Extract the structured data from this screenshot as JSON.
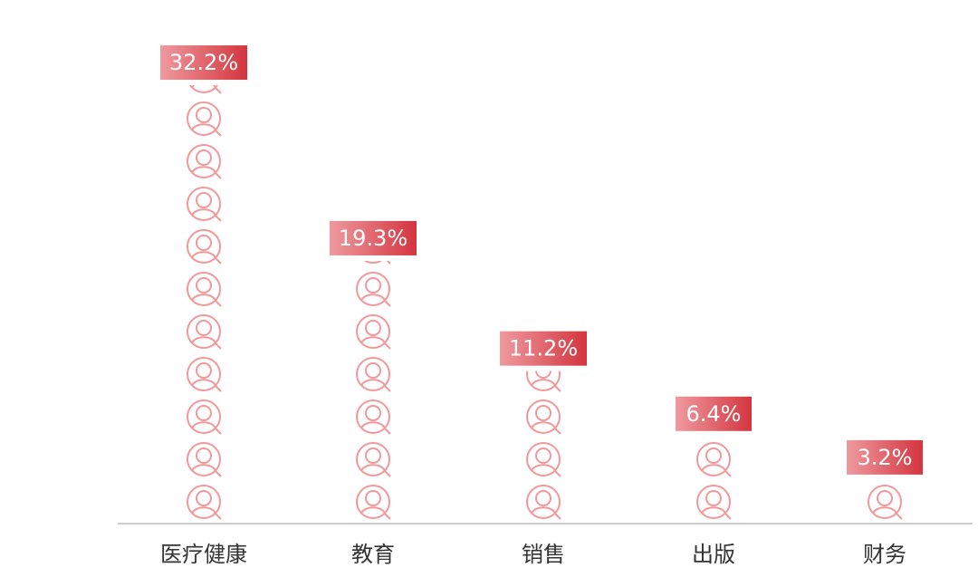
{
  "chart_data": {
    "type": "bar",
    "categories": [
      "医疗健康",
      "教育",
      "销售",
      "出版",
      "财务"
    ],
    "values": [
      32.2,
      19.3,
      11.2,
      6.4,
      3.2
    ],
    "value_labels": [
      "32.2%",
      "19.3%",
      "11.2%",
      "6.4%",
      "3.2%"
    ],
    "unit": "%",
    "ylim": [
      0,
      35
    ],
    "grid": false,
    "legend": "none",
    "mark_icon": "person-in-circle-icon",
    "colors": {
      "icon_stroke": "#f2989b",
      "label_gradient_start": "#ee9a9f",
      "label_gradient_end": "#d4353f",
      "axis": "#cccccc",
      "tick_text": "#333333"
    }
  }
}
